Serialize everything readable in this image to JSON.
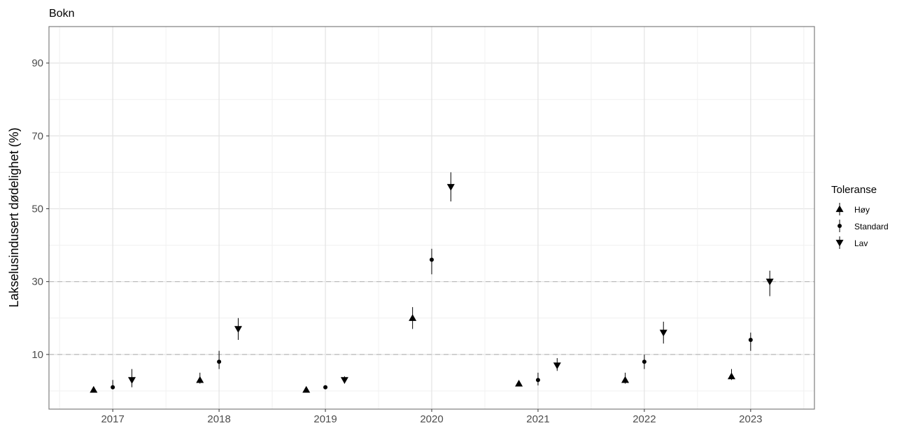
{
  "chart_data": {
    "type": "scatter",
    "title": "Bokn",
    "xlabel": "",
    "ylabel": "Lakselusindusert dødelighet (%)",
    "x_categories": [
      "2017",
      "2018",
      "2019",
      "2020",
      "2021",
      "2022",
      "2023"
    ],
    "y_ticks": [
      10,
      30,
      50,
      70,
      90
    ],
    "ylim": [
      -5,
      100
    ],
    "grid": true,
    "reference_lines": [
      10,
      30
    ],
    "legend": {
      "title": "Toleranse",
      "placement": "right",
      "entries": [
        {
          "label": "Høy",
          "shape": "triangle-up"
        },
        {
          "label": "Standard",
          "shape": "circle"
        },
        {
          "label": "Lav",
          "shape": "triangle-down"
        }
      ]
    },
    "series": [
      {
        "name": "Høy",
        "shape": "triangle-up",
        "points": [
          {
            "x": "2017",
            "y": 0.3,
            "low": 0.1,
            "high": 0.8
          },
          {
            "x": "2018",
            "y": 3.0,
            "low": 2.0,
            "high": 5.0
          },
          {
            "x": "2019",
            "y": 0.3,
            "low": 0.1,
            "high": 0.8
          },
          {
            "x": "2020",
            "y": 20.0,
            "low": 17.0,
            "high": 23.0
          },
          {
            "x": "2021",
            "y": 2.0,
            "low": 1.5,
            "high": 2.5
          },
          {
            "x": "2022",
            "y": 3.0,
            "low": 2.0,
            "high": 5.0
          },
          {
            "x": "2023",
            "y": 4.0,
            "low": 3.0,
            "high": 6.0
          }
        ]
      },
      {
        "name": "Standard",
        "shape": "circle",
        "points": [
          {
            "x": "2017",
            "y": 1.0,
            "low": 0.5,
            "high": 3.0
          },
          {
            "x": "2018",
            "y": 8.0,
            "low": 6.0,
            "high": 11.0
          },
          {
            "x": "2019",
            "y": 1.0,
            "low": 0.6,
            "high": 1.5
          },
          {
            "x": "2020",
            "y": 36.0,
            "low": 32.0,
            "high": 39.0
          },
          {
            "x": "2021",
            "y": 3.0,
            "low": 1.5,
            "high": 5.0
          },
          {
            "x": "2022",
            "y": 8.0,
            "low": 6.0,
            "high": 10.0
          },
          {
            "x": "2023",
            "y": 14.0,
            "low": 11.0,
            "high": 16.0
          }
        ]
      },
      {
        "name": "Lav",
        "shape": "triangle-down",
        "points": [
          {
            "x": "2017",
            "y": 3.0,
            "low": 1.0,
            "high": 6.0
          },
          {
            "x": "2018",
            "y": 17.0,
            "low": 14.0,
            "high": 20.0
          },
          {
            "x": "2019",
            "y": 3.0,
            "low": 2.0,
            "high": 4.0
          },
          {
            "x": "2020",
            "y": 56.0,
            "low": 52.0,
            "high": 60.0
          },
          {
            "x": "2021",
            "y": 7.0,
            "low": 5.5,
            "high": 9.0
          },
          {
            "x": "2022",
            "y": 16.0,
            "low": 13.0,
            "high": 19.0
          },
          {
            "x": "2023",
            "y": 30.0,
            "low": 26.0,
            "high": 33.0
          }
        ]
      }
    ]
  }
}
